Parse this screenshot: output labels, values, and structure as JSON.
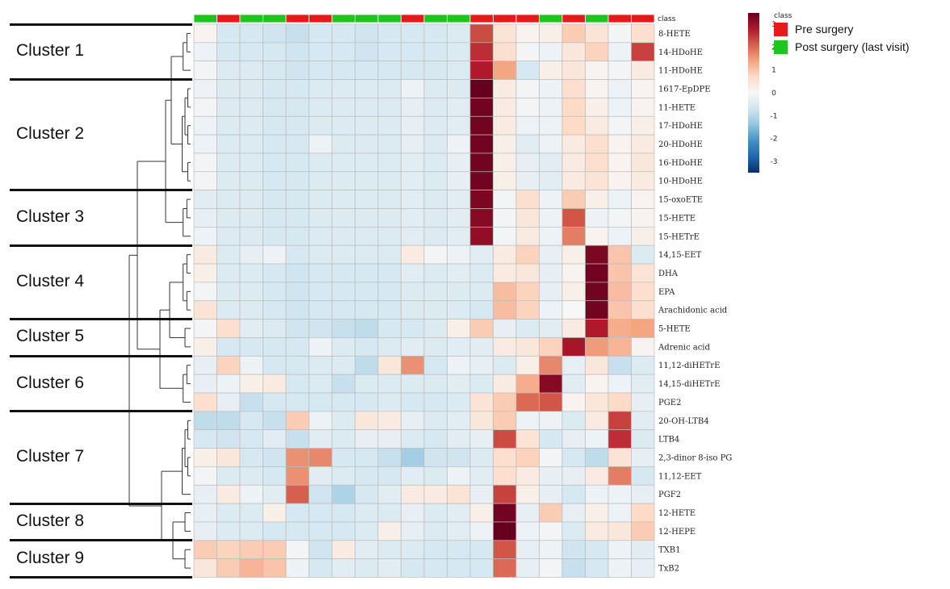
{
  "chart_data": {
    "type": "heatmap",
    "title": "",
    "class_label": "class",
    "legend_title": "class",
    "color_scale": {
      "min": -3.5,
      "max": 3.5,
      "ticks": [
        3,
        2,
        1,
        0,
        -1,
        -2,
        -3
      ],
      "colors": [
        "#08306b",
        "#2166ac",
        "#4393c3",
        "#92c5de",
        "#d1e5f0",
        "#f7f7f7",
        "#fddbc7",
        "#f4a582",
        "#d6604d",
        "#b2182b",
        "#67001f"
      ]
    },
    "classes": [
      {
        "name": "Pre surgery",
        "color": "#e8191b"
      },
      {
        "name": "Post surgery (last visit)",
        "color": "#1fc41f"
      }
    ],
    "column_classes": [
      "Post surgery (last visit)",
      "Pre surgery",
      "Post surgery (last visit)",
      "Post surgery (last visit)",
      "Pre surgery",
      "Pre surgery",
      "Post surgery (last visit)",
      "Post surgery (last visit)",
      "Post surgery (last visit)",
      "Pre surgery",
      "Post surgery (last visit)",
      "Post surgery (last visit)",
      "Pre surgery",
      "Pre surgery",
      "Pre surgery",
      "Post surgery (last visit)",
      "Pre surgery",
      "Post surgery (last visit)",
      "Pre surgery",
      "Pre surgery"
    ],
    "rows": [
      "8-HETE",
      "14-HDoHE",
      "11-HDoHE",
      "1617-EpDPE",
      "11-HETE",
      "17-HDoHE",
      "20-HDoHE",
      "16-HDoHE",
      "10-HDoHE",
      "15-oxoETE",
      "15-HETE",
      "15-HETrE",
      "14,15-EET",
      "DHA",
      "EPA",
      "Arachidonic acid",
      "5-HETE",
      "Adrenic acid",
      "11,12-diHETrE",
      "14,15-diHETrE",
      "PGE2",
      "20-OH-LTB4",
      "LTB4",
      "2,3-dinor 8-iso PG",
      "11,12-EET",
      "PGF2",
      "12-HETE",
      "12-HEPE",
      "TXB1",
      "TxB2"
    ],
    "values": [
      [
        0.1,
        -0.6,
        -0.6,
        -0.7,
        -0.8,
        -0.6,
        -0.6,
        -0.7,
        -0.6,
        -0.6,
        -0.6,
        -0.5,
        2.3,
        0.5,
        0.1,
        0.2,
        0.9,
        0.5,
        -0.1,
        0.6
      ],
      [
        -0.2,
        -0.6,
        -0.6,
        -0.6,
        -0.7,
        -0.6,
        -0.6,
        -0.7,
        -0.6,
        -0.6,
        -0.6,
        -0.5,
        2.6,
        0.6,
        -0.1,
        -0.2,
        0.4,
        0.8,
        -0.2,
        2.4
      ],
      [
        -0.1,
        -0.5,
        -0.5,
        -0.6,
        -0.7,
        -0.6,
        -0.6,
        -0.6,
        -0.6,
        -0.6,
        -0.6,
        -0.5,
        2.8,
        1.4,
        -0.6,
        0.2,
        0.4,
        0.1,
        -0.1,
        0.3
      ],
      [
        -0.2,
        -0.5,
        -0.5,
        -0.6,
        -0.6,
        -0.5,
        -0.5,
        -0.5,
        -0.5,
        -0.2,
        -0.5,
        -0.5,
        3.5,
        0.3,
        -0.1,
        -0.2,
        0.6,
        0.1,
        -0.2,
        0.1
      ],
      [
        -0.1,
        -0.5,
        -0.5,
        -0.6,
        -0.6,
        -0.5,
        -0.5,
        -0.5,
        -0.5,
        -0.3,
        -0.5,
        -0.4,
        3.4,
        0.3,
        -0.1,
        -0.2,
        0.7,
        0.2,
        -0.2,
        0.1
      ],
      [
        -0.2,
        -0.5,
        -0.5,
        -0.6,
        -0.6,
        -0.5,
        -0.5,
        -0.5,
        -0.5,
        -0.3,
        -0.5,
        -0.4,
        3.4,
        0.3,
        -0.2,
        -0.2,
        0.7,
        0.3,
        -0.1,
        0.2
      ],
      [
        -0.2,
        -0.5,
        -0.5,
        -0.6,
        -0.6,
        -0.2,
        -0.5,
        -0.5,
        -0.5,
        -0.3,
        -0.5,
        -0.2,
        3.4,
        0.2,
        -0.4,
        -0.2,
        0.3,
        0.6,
        0.1,
        0.3
      ],
      [
        -0.1,
        -0.5,
        -0.5,
        -0.6,
        -0.6,
        -0.5,
        -0.5,
        -0.5,
        -0.5,
        -0.4,
        -0.5,
        -0.3,
        3.4,
        0.2,
        -0.3,
        -0.4,
        0.3,
        0.6,
        0.1,
        0.4
      ],
      [
        -0.1,
        -0.5,
        -0.5,
        -0.6,
        -0.6,
        -0.5,
        -0.5,
        -0.5,
        -0.5,
        -0.4,
        -0.5,
        -0.3,
        3.4,
        0.2,
        -0.3,
        -0.4,
        0.3,
        0.5,
        0.1,
        0.3
      ],
      [
        -0.4,
        -0.5,
        -0.5,
        -0.6,
        -0.6,
        -0.5,
        -0.5,
        -0.5,
        -0.5,
        -0.4,
        -0.5,
        -0.4,
        3.3,
        -0.1,
        0.6,
        -0.2,
        0.9,
        0.2,
        -0.2,
        0.1
      ],
      [
        -0.3,
        -0.5,
        -0.5,
        -0.6,
        -0.6,
        -0.5,
        -0.5,
        -0.5,
        -0.5,
        -0.4,
        -0.5,
        -0.4,
        3.2,
        -0.1,
        0.4,
        -0.2,
        2.2,
        -0.2,
        -0.1,
        0.1
      ],
      [
        -0.2,
        -0.5,
        -0.5,
        -0.6,
        -0.6,
        -0.5,
        -0.5,
        -0.5,
        -0.5,
        -0.4,
        -0.5,
        -0.4,
        3.1,
        -0.1,
        0.3,
        -0.2,
        1.8,
        0.1,
        -0.2,
        0.2
      ],
      [
        0.3,
        -0.5,
        -0.3,
        -0.2,
        -0.6,
        -0.5,
        -0.5,
        -0.5,
        -0.5,
        0.3,
        -0.1,
        -0.2,
        -0.4,
        0.3,
        0.8,
        -0.3,
        0.2,
        3.3,
        1.0,
        -0.5
      ],
      [
        0.2,
        -0.5,
        -0.5,
        -0.6,
        -0.7,
        -0.6,
        -0.6,
        -0.6,
        -0.6,
        -0.4,
        -0.5,
        -0.4,
        -0.5,
        0.3,
        0.4,
        -0.3,
        0.1,
        3.4,
        1.0,
        0.5
      ],
      [
        -0.1,
        -0.5,
        -0.5,
        -0.6,
        -0.7,
        -0.6,
        -0.6,
        -0.6,
        -0.6,
        -0.5,
        -0.5,
        -0.5,
        -0.5,
        1.1,
        0.8,
        -0.3,
        0.2,
        3.4,
        1.1,
        0.6
      ],
      [
        0.5,
        -0.5,
        -0.5,
        -0.6,
        -0.7,
        -0.6,
        -0.6,
        -0.6,
        -0.6,
        -0.5,
        -0.5,
        -0.5,
        -0.6,
        1.1,
        0.8,
        -0.2,
        0.0,
        3.4,
        1.0,
        0.6
      ],
      [
        -0.1,
        0.6,
        -0.4,
        -0.5,
        -0.7,
        -0.7,
        -0.8,
        -0.9,
        -0.6,
        -0.6,
        -0.5,
        0.2,
        0.9,
        -0.3,
        -0.5,
        -0.4,
        0.3,
        2.8,
        1.3,
        1.4
      ],
      [
        0.2,
        -0.6,
        -0.6,
        -0.6,
        -0.6,
        -0.2,
        -0.5,
        -0.6,
        -0.5,
        -0.4,
        -0.5,
        -0.4,
        -0.4,
        0.3,
        0.4,
        0.8,
        2.9,
        1.5,
        1.2,
        0.1
      ],
      [
        -0.3,
        0.8,
        -0.2,
        -0.6,
        -0.6,
        -0.5,
        -0.5,
        -0.9,
        0.4,
        1.6,
        -0.6,
        -0.2,
        -0.3,
        -0.5,
        0.2,
        1.7,
        -0.3,
        0.4,
        -0.8,
        -0.5
      ],
      [
        -0.3,
        -0.2,
        0.2,
        0.3,
        -0.6,
        -0.5,
        -0.8,
        -0.5,
        -0.5,
        -0.5,
        -0.5,
        -0.4,
        -0.5,
        0.3,
        1.3,
        3.2,
        -0.4,
        0.1,
        -0.2,
        -0.4
      ],
      [
        0.6,
        -0.3,
        -0.8,
        -0.6,
        -0.6,
        -0.6,
        -0.6,
        -0.6,
        -0.5,
        -0.6,
        -0.6,
        -0.5,
        0.5,
        0.9,
        2.0,
        2.2,
        0.1,
        0.4,
        0.7,
        -0.3
      ],
      [
        -0.9,
        -0.9,
        -0.6,
        -0.8,
        0.9,
        -0.2,
        -0.5,
        0.4,
        0.3,
        -0.3,
        -0.5,
        -0.4,
        0.4,
        0.9,
        -0.2,
        -0.2,
        -0.5,
        0.3,
        2.4,
        -0.4
      ],
      [
        -0.6,
        -0.7,
        -0.6,
        -0.4,
        -0.8,
        -0.4,
        -0.5,
        -0.3,
        -0.3,
        -0.5,
        -0.6,
        -0.4,
        -0.3,
        2.3,
        0.5,
        -0.6,
        -0.3,
        -0.2,
        2.6,
        -0.5
      ],
      [
        0.2,
        0.4,
        -0.6,
        -0.7,
        1.6,
        1.7,
        -0.6,
        -0.6,
        -0.8,
        -1.2,
        -0.7,
        -0.7,
        -0.5,
        0.6,
        0.8,
        -0.1,
        -0.6,
        -0.9,
        0.5,
        -0.3
      ],
      [
        -0.1,
        -0.5,
        -0.5,
        -0.6,
        1.6,
        -0.4,
        -0.5,
        -0.6,
        -0.6,
        -0.4,
        -0.5,
        -0.2,
        -0.4,
        0.6,
        0.3,
        -0.3,
        -0.3,
        0.3,
        1.8,
        -0.6
      ],
      [
        -0.3,
        0.3,
        -0.2,
        -0.4,
        2.1,
        -0.7,
        -1.1,
        -0.6,
        -0.4,
        0.3,
        0.3,
        0.5,
        -0.3,
        2.4,
        0.2,
        -0.3,
        -0.6,
        -0.2,
        -0.2,
        -0.3
      ],
      [
        -0.3,
        -0.5,
        -0.5,
        0.2,
        -0.6,
        -0.6,
        -0.6,
        -0.5,
        -0.5,
        -0.3,
        -0.5,
        -0.4,
        0.2,
        3.4,
        -0.3,
        0.9,
        -0.3,
        0.2,
        -0.2,
        0.7
      ],
      [
        -0.3,
        -0.5,
        -0.5,
        -0.6,
        -0.6,
        -0.6,
        -0.6,
        -0.5,
        0.2,
        -0.3,
        -0.5,
        -0.4,
        -0.2,
        3.5,
        -0.2,
        -0.1,
        -0.5,
        0.3,
        0.4,
        0.9
      ],
      [
        0.9,
        0.8,
        0.9,
        0.9,
        -0.1,
        -0.7,
        0.3,
        -0.4,
        -0.5,
        -0.5,
        -0.6,
        -0.6,
        -0.6,
        2.2,
        -0.3,
        -0.2,
        -0.7,
        -0.6,
        -0.2,
        -0.4
      ],
      [
        0.4,
        0.9,
        1.2,
        1.0,
        -0.2,
        -0.6,
        -0.4,
        -0.5,
        -0.4,
        -0.6,
        -0.6,
        -0.6,
        -0.6,
        2.0,
        -0.3,
        -0.1,
        -0.8,
        -0.6,
        -0.2,
        -0.3
      ]
    ],
    "clusters": [
      {
        "name": "Cluster 1",
        "rows": [
          0,
          2
        ]
      },
      {
        "name": "Cluster 2",
        "rows": [
          3,
          8
        ]
      },
      {
        "name": "Cluster 3",
        "rows": [
          9,
          11
        ]
      },
      {
        "name": "Cluster 4",
        "rows": [
          12,
          15
        ]
      },
      {
        "name": "Cluster 5",
        "rows": [
          16,
          17
        ]
      },
      {
        "name": "Cluster 6",
        "rows": [
          18,
          20
        ]
      },
      {
        "name": "Cluster 7",
        "rows": [
          21,
          25
        ]
      },
      {
        "name": "Cluster 8",
        "rows": [
          26,
          27
        ]
      },
      {
        "name": "Cluster 9",
        "rows": [
          28,
          29
        ]
      }
    ]
  }
}
